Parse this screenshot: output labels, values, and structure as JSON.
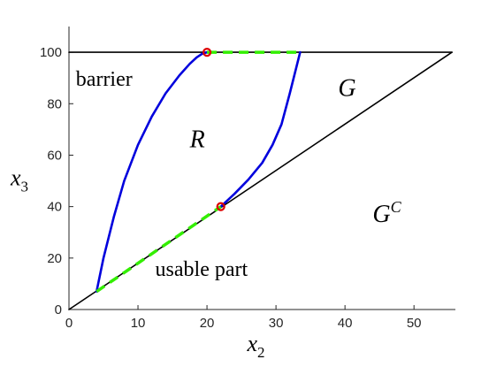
{
  "chart_data": {
    "type": "line",
    "xlim": [
      0,
      56
    ],
    "ylim": [
      0,
      110
    ],
    "xticks": [
      0,
      10,
      20,
      30,
      40,
      50
    ],
    "yticks": [
      0,
      20,
      40,
      60,
      80,
      100
    ],
    "xlabel": {
      "base": "x",
      "sub": "2"
    },
    "ylabel": {
      "base": "x",
      "sub": "3"
    },
    "grid": false,
    "colors": {
      "axis": "#262626",
      "black_line": "#000000",
      "blue_curve": "#0000dd",
      "green_dash": "#33ee00",
      "red_marker": "#dd0000"
    },
    "series": [
      {
        "style": "black",
        "x": [
          0,
          55.5
        ],
        "y": [
          0,
          100
        ]
      },
      {
        "style": "black",
        "x": [
          0,
          55.5
        ],
        "y": [
          100,
          100
        ]
      },
      {
        "style": "blue",
        "x": [
          4,
          5,
          6.5,
          8,
          10,
          12,
          14,
          16,
          17.5,
          18.5,
          19.3,
          20
        ],
        "y": [
          7,
          20,
          36,
          50,
          64,
          75,
          84,
          91,
          95.5,
          98,
          99.4,
          100
        ]
      },
      {
        "style": "blue",
        "x": [
          22,
          24,
          26,
          28,
          29.5,
          30.8,
          32,
          33.5
        ],
        "y": [
          40,
          45,
          50.5,
          57,
          64,
          72,
          84,
          100
        ]
      },
      {
        "style": "dash",
        "x": [
          4,
          22
        ],
        "y": [
          7,
          40
        ]
      },
      {
        "style": "dash",
        "x": [
          20,
          33.5
        ],
        "y": [
          100,
          100
        ]
      }
    ],
    "markers": [
      {
        "x": 20,
        "y": 100
      },
      {
        "x": 22,
        "y": 40
      }
    ],
    "annotations": [
      {
        "text": "barrier",
        "kind": "plain",
        "x": 1,
        "y": 87
      },
      {
        "text": "usable part",
        "kind": "plain",
        "x": 12.5,
        "y": 13
      },
      {
        "text": "R",
        "kind": "script",
        "x": 17.5,
        "y": 63
      },
      {
        "text": "G",
        "kind": "script",
        "x": 39,
        "y": 83
      },
      {
        "text": "G",
        "sup": "C",
        "kind": "script",
        "x": 44,
        "y": 34
      }
    ]
  }
}
